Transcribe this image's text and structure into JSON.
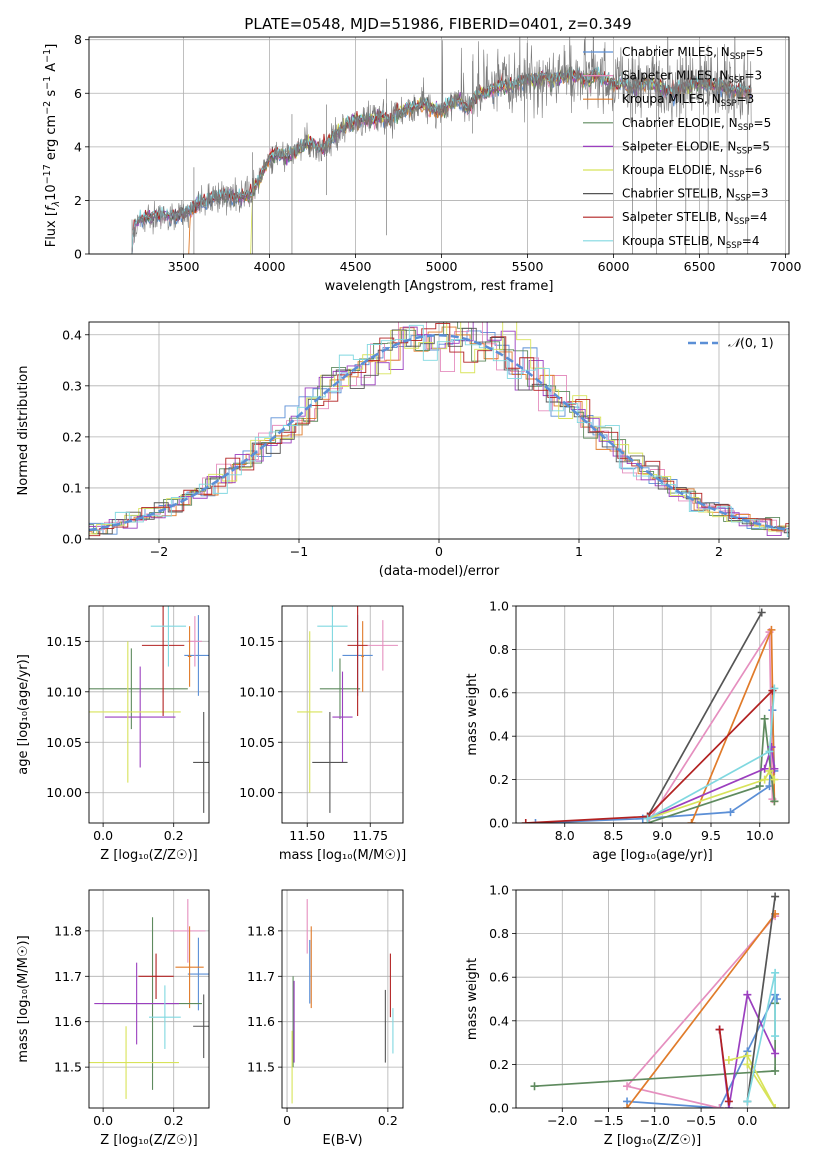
{
  "figure_title": "PLATE=0548, MJD=51986, FIBERID=0401, z=0.349",
  "colors": {
    "s1": "#5b8fd6",
    "s2": "#e58fbf",
    "s3": "#e07b2a",
    "s4": "#5e8a5e",
    "s5": "#9b3fbf",
    "s6": "#d8e35a",
    "s7": "#555555",
    "s8": "#b22222",
    "s9": "#80d8e0",
    "spec": "#7a7a7a"
  },
  "legend_spectrum": [
    {
      "text": "Chabrier MILES, N",
      "sub": "SSP",
      "tail": "=5",
      "color": "#5b8fd6"
    },
    {
      "text": "Salpeter MILES, N",
      "sub": "SSP",
      "tail": "=3",
      "color": "#e58fbf"
    },
    {
      "text": "Kroupa MILES, N",
      "sub": "SSP",
      "tail": "=3",
      "color": "#e07b2a"
    },
    {
      "text": "Chabrier ELODIE, N",
      "sub": "SSP",
      "tail": "=5",
      "color": "#5e8a5e"
    },
    {
      "text": "Salpeter ELODIE, N",
      "sub": "SSP",
      "tail": "=5",
      "color": "#9b3fbf"
    },
    {
      "text": "Kroupa ELODIE, N",
      "sub": "SSP",
      "tail": "=6",
      "color": "#d8e35a"
    },
    {
      "text": "Chabrier STELIB, N",
      "sub": "SSP",
      "tail": "=3",
      "color": "#555555"
    },
    {
      "text": "Salpeter STELIB, N",
      "sub": "SSP",
      "tail": "=4",
      "color": "#b22222"
    },
    {
      "text": "Kroupa STELIB, N",
      "sub": "SSP",
      "tail": "=4",
      "color": "#80d8e0"
    }
  ],
  "chart_data": [
    {
      "id": "spectrum",
      "type": "line",
      "title": "PLATE=0548, MJD=51986, FIBERID=0401, z=0.349",
      "xlabel": "wavelength [Angstrom, rest frame]",
      "ylabel_parts": [
        "Flux [",
        "f",
        "λ",
        "10",
        "−17",
        " erg cm",
        "−2",
        " s",
        "−1",
        " A",
        "−1",
        "]"
      ],
      "xlim": [
        2950,
        7020
      ],
      "ylim": [
        0,
        8.1
      ],
      "xticks": [
        3500,
        4000,
        4500,
        5000,
        5500,
        6000,
        6500,
        7000
      ],
      "yticks": [
        0,
        2,
        4,
        6,
        8
      ],
      "xticklabels": [
        "3500",
        "4000",
        "4500",
        "5000",
        "5500",
        "6000",
        "6500",
        "7000"
      ],
      "yticklabels": [
        "0",
        "2",
        "4",
        "6",
        "8"
      ],
      "continuum": {
        "x": [
          3200,
          3250,
          3300,
          3350,
          3400,
          3450,
          3500,
          3550,
          3600,
          3650,
          3700,
          3750,
          3800,
          3850,
          3900,
          3950,
          4000,
          4050,
          4100,
          4150,
          4200,
          4250,
          4300,
          4350,
          4400,
          4450,
          4500,
          4550,
          4600,
          4650,
          4700,
          4750,
          4800,
          4850,
          4900,
          4950,
          5000,
          5050,
          5100,
          5150,
          5200,
          5250,
          5300,
          5350,
          5400,
          5450,
          5500,
          5550,
          5600,
          5650,
          5700,
          5750,
          5800,
          5850,
          5900,
          5950,
          6000,
          6050,
          6100,
          6150,
          6200,
          6250,
          6300,
          6350,
          6400,
          6450,
          6500,
          6550,
          6600,
          6650,
          6700,
          6750,
          6800
        ],
        "y": [
          1.0,
          1.3,
          1.4,
          1.4,
          1.45,
          1.4,
          1.5,
          1.7,
          1.9,
          2.0,
          2.2,
          2.2,
          2.1,
          2.1,
          2.3,
          2.9,
          3.6,
          3.7,
          3.6,
          3.8,
          4.1,
          4.1,
          3.9,
          4.2,
          4.6,
          4.8,
          5.0,
          5.0,
          5.0,
          5.1,
          5.0,
          5.3,
          5.4,
          5.5,
          5.6,
          5.4,
          5.3,
          5.6,
          5.8,
          5.4,
          5.9,
          6.0,
          6.1,
          6.3,
          6.3,
          6.4,
          6.5,
          6.5,
          6.6,
          6.5,
          6.6,
          6.7,
          6.6,
          6.5,
          6.7,
          6.5,
          6.3,
          6.4,
          6.2,
          6.3,
          6.4,
          6.3,
          6.1,
          6.0,
          6.2,
          6.3,
          6.4,
          6.3,
          6.3,
          6.2,
          6.1,
          6.1,
          6.1
        ]
      },
      "dips": [
        {
          "x": 3560,
          "y": 0.0
        },
        {
          "x": 3900,
          "y": 0.0
        },
        {
          "x": 4130,
          "y": 0.0
        },
        {
          "x": 4330,
          "y": 2.2
        },
        {
          "x": 4680,
          "y": 0.7
        },
        {
          "x": 5180,
          "y": 4.5
        },
        {
          "x": 6110,
          "y": 0.0
        },
        {
          "x": 6250,
          "y": 0.0
        },
        {
          "x": 6420,
          "y": 0.0
        },
        {
          "x": 6550,
          "y": 0.0
        },
        {
          "x": 6660,
          "y": 0.0
        },
        {
          "x": 6780,
          "y": 0.0
        }
      ],
      "legend_position": "upper-right"
    },
    {
      "id": "residuals",
      "type": "histogram",
      "xlabel": "(data-model)/error",
      "ylabel": "Normed distribution",
      "xlim": [
        -2.5,
        2.5
      ],
      "ylim": [
        0,
        0.425
      ],
      "xticks": [
        -2,
        -1,
        0,
        1,
        2
      ],
      "xticklabels": [
        "−2",
        "−1",
        "0",
        "1",
        "2"
      ],
      "yticks": [
        0,
        0.1,
        0.2,
        0.3,
        0.4
      ],
      "yticklabels": [
        "0.0",
        "0.1",
        "0.2",
        "0.3",
        "0.4"
      ],
      "bin_width": 0.1,
      "legend_label_prefix": "𝒩",
      "legend_label": "(0, 1)",
      "legend_position": "upper-right"
    },
    {
      "id": "age-vs-Z",
      "type": "errorbar",
      "xlabel": "Z [log₁₀(Z/Z☉)]",
      "ylabel": "age  [log₁₀(age/yr)]",
      "xlim": [
        -0.04,
        0.3
      ],
      "ylim": [
        9.97,
        10.185
      ],
      "xticks": [
        0,
        0.2
      ],
      "xticklabels": [
        "0.0",
        "0.2"
      ],
      "yticks": [
        10.0,
        10.05,
        10.1,
        10.15
      ],
      "yticklabels": [
        "10.00",
        "10.05",
        "10.10",
        "10.15"
      ],
      "points": [
        {
          "c": "s1",
          "x": 0.27,
          "xerr": 0.04,
          "y": 10.136,
          "yerr": 0.04
        },
        {
          "c": "s2",
          "x": 0.26,
          "xerr": 0.02,
          "y": 10.15,
          "yerr": 0.025
        },
        {
          "c": "s3",
          "x": 0.245,
          "xerr": 0.005,
          "y": 10.135,
          "yerr": 0.03
        },
        {
          "c": "s4",
          "x": 0.08,
          "xerr": 0.16,
          "y": 10.103,
          "yerr": 0.04
        },
        {
          "c": "s5",
          "x": 0.105,
          "xerr": 0.1,
          "y": 10.075,
          "yerr": 0.05
        },
        {
          "c": "s6",
          "x": 0.07,
          "xerr": 0.15,
          "y": 10.08,
          "yerr": 0.07
        },
        {
          "c": "s7",
          "x": 0.285,
          "xerr": 0.03,
          "y": 10.03,
          "yerr": 0.05
        },
        {
          "c": "s8",
          "x": 0.17,
          "xerr": 0.06,
          "y": 10.146,
          "yerr": 0.07
        },
        {
          "c": "s9",
          "x": 0.185,
          "xerr": 0.05,
          "y": 10.165,
          "yerr": 0.04
        }
      ]
    },
    {
      "id": "age-vs-mass",
      "type": "errorbar",
      "xlabel": "mass [log₁₀(M/M☉)]",
      "ylabel": "",
      "xlim": [
        11.4,
        11.88
      ],
      "ylim": [
        9.97,
        10.185
      ],
      "xticks": [
        11.5,
        11.75
      ],
      "xticklabels": [
        "11.50",
        "11.75"
      ],
      "yticks": [
        10.0,
        10.05,
        10.1,
        10.15
      ],
      "yticklabels": [
        "10.00",
        "10.05",
        "10.10",
        "10.15"
      ],
      "points": [
        {
          "c": "s1",
          "x": 11.7,
          "xerr": 0.06,
          "y": 10.136,
          "yerr": 0.04
        },
        {
          "c": "s2",
          "x": 11.8,
          "xerr": 0.06,
          "y": 10.146,
          "yerr": 0.025
        },
        {
          "c": "s3",
          "x": 11.72,
          "xerr": 0.005,
          "y": 10.135,
          "yerr": 0.035
        },
        {
          "c": "s4",
          "x": 11.63,
          "xerr": 0.08,
          "y": 10.103,
          "yerr": 0.03
        },
        {
          "c": "s5",
          "x": 11.64,
          "xerr": 0.04,
          "y": 10.075,
          "yerr": 0.045
        },
        {
          "c": "s6",
          "x": 11.51,
          "xerr": 0.05,
          "y": 10.08,
          "yerr": 0.08
        },
        {
          "c": "s7",
          "x": 11.59,
          "xerr": 0.07,
          "y": 10.03,
          "yerr": 0.05
        },
        {
          "c": "s8",
          "x": 11.7,
          "xerr": 0.04,
          "y": 10.146,
          "yerr": 0.07
        },
        {
          "c": "s9",
          "x": 11.6,
          "xerr": 0.06,
          "y": 10.165,
          "yerr": 0.045
        }
      ]
    },
    {
      "id": "weight-vs-age",
      "type": "line",
      "xlabel": "age  [log₁₀(age/yr)]",
      "ylabel": "mass weight",
      "xlim": [
        7.5,
        10.3
      ],
      "ylim": [
        0,
        1.0
      ],
      "xticks": [
        8.0,
        8.5,
        9.0,
        9.5,
        10.0
      ],
      "xticklabels": [
        "8.0",
        "8.5",
        "9.0",
        "9.5",
        "10.0"
      ],
      "yticks": [
        0,
        0.2,
        0.4,
        0.6,
        0.8,
        1.0
      ],
      "yticklabels": [
        "0.0",
        "0.2",
        "0.4",
        "0.6",
        "0.8",
        "1.0"
      ],
      "series": [
        {
          "c": "s1",
          "x": [
            7.7,
            8.8,
            9.7,
            10.1,
            10.13,
            10.15
          ],
          "y": [
            0.0,
            0.02,
            0.05,
            0.17,
            0.52,
            0.24
          ]
        },
        {
          "c": "s2",
          "x": [
            8.85,
            10.1,
            10.13
          ],
          "y": [
            0.0,
            0.88,
            0.11
          ]
        },
        {
          "c": "s3",
          "x": [
            9.3,
            10.12,
            10.15
          ],
          "y": [
            0.0,
            0.89,
            0.1
          ]
        },
        {
          "c": "s4",
          "x": [
            8.85,
            10.0,
            10.05,
            10.15
          ],
          "y": [
            0.0,
            0.17,
            0.48,
            0.1
          ]
        },
        {
          "c": "s5",
          "x": [
            8.85,
            10.05,
            10.12,
            10.15
          ],
          "y": [
            0.02,
            0.25,
            0.35,
            0.25
          ]
        },
        {
          "c": "s6",
          "x": [
            8.85,
            10.05,
            10.1,
            10.15
          ],
          "y": [
            0.02,
            0.2,
            0.24,
            0.2
          ]
        },
        {
          "c": "s7",
          "x": [
            8.85,
            10.02
          ],
          "y": [
            0.03,
            0.97
          ]
        },
        {
          "c": "s8",
          "x": [
            7.6,
            8.85,
            10.13
          ],
          "y": [
            0.0,
            0.03,
            0.61
          ]
        },
        {
          "c": "s9",
          "x": [
            8.85,
            10.1,
            10.15
          ],
          "y": [
            0.02,
            0.33,
            0.62
          ]
        }
      ]
    },
    {
      "id": "mass-vs-Z",
      "type": "errorbar",
      "xlabel": "Z [log₁₀(Z/Z☉)]",
      "ylabel": "mass [log₁₀(M/M☉)]",
      "xlim": [
        -0.04,
        0.3
      ],
      "ylim": [
        11.41,
        11.89
      ],
      "xticks": [
        0,
        0.2
      ],
      "xticklabels": [
        "0.0",
        "0.2"
      ],
      "yticks": [
        11.5,
        11.6,
        11.7,
        11.8
      ],
      "yticklabels": [
        "11.5",
        "11.6",
        "11.7",
        "11.8"
      ],
      "points": [
        {
          "c": "s1",
          "x": 0.27,
          "xerr": 0.03,
          "y": 11.705,
          "yerr": 0.08
        },
        {
          "c": "s2",
          "x": 0.24,
          "xerr": 0.05,
          "y": 11.8,
          "yerr": 0.07
        },
        {
          "c": "s3",
          "x": 0.245,
          "xerr": 0.04,
          "y": 11.72,
          "yerr": 0.09
        },
        {
          "c": "s4",
          "x": 0.14,
          "xerr": 0.14,
          "y": 11.64,
          "yerr": 0.19
        },
        {
          "c": "s5",
          "x": 0.095,
          "xerr": 0.12,
          "y": 11.64,
          "yerr": 0.09
        },
        {
          "c": "s6",
          "x": 0.065,
          "xerr": 0.15,
          "y": 11.51,
          "yerr": 0.08
        },
        {
          "c": "s7",
          "x": 0.285,
          "xerr": 0.03,
          "y": 11.59,
          "yerr": 0.07
        },
        {
          "c": "s8",
          "x": 0.15,
          "xerr": 0.05,
          "y": 11.7,
          "yerr": 0.05
        },
        {
          "c": "s9",
          "x": 0.175,
          "xerr": 0.045,
          "y": 11.61,
          "yerr": 0.07
        }
      ]
    },
    {
      "id": "mass-vs-EBV",
      "type": "errorbar",
      "xlabel": "E(B-V)",
      "ylabel": "",
      "xlim": [
        -0.01,
        0.23
      ],
      "ylim": [
        11.41,
        11.89
      ],
      "xticks": [
        0,
        0.2
      ],
      "xticklabels": [
        "0",
        "0.2"
      ],
      "yticks": [
        11.5,
        11.6,
        11.7,
        11.8
      ],
      "yticklabels": [
        "11.5",
        "11.6",
        "11.7",
        "11.8"
      ],
      "points": [
        {
          "c": "s1",
          "x": 0.045,
          "xerr": 0,
          "y": 11.71,
          "yerr": 0.07
        },
        {
          "c": "s2",
          "x": 0.04,
          "xerr": 0,
          "y": 11.81,
          "yerr": 0.06
        },
        {
          "c": "s3",
          "x": 0.048,
          "xerr": 0,
          "y": 11.72,
          "yerr": 0.09
        },
        {
          "c": "s4",
          "x": 0.012,
          "xerr": 0,
          "y": 11.6,
          "yerr": 0.1
        },
        {
          "c": "s5",
          "x": 0.014,
          "xerr": 0,
          "y": 11.6,
          "yerr": 0.09
        },
        {
          "c": "s6",
          "x": 0.01,
          "xerr": 0,
          "y": 11.5,
          "yerr": 0.08
        },
        {
          "c": "s7",
          "x": 0.195,
          "xerr": 0,
          "y": 11.59,
          "yerr": 0.08
        },
        {
          "c": "s8",
          "x": 0.205,
          "xerr": 0,
          "y": 11.68,
          "yerr": 0.07
        },
        {
          "c": "s9",
          "x": 0.21,
          "xerr": 0,
          "y": 11.58,
          "yerr": 0.05
        }
      ]
    },
    {
      "id": "weight-vs-Z",
      "type": "line",
      "xlabel": "Z [log₁₀(Z/Z☉)]",
      "ylabel": "mass weight",
      "xlim": [
        -2.5,
        0.45
      ],
      "ylim": [
        0,
        1.0
      ],
      "xticks": [
        -2.0,
        -1.5,
        -1.0,
        -0.5,
        0.0
      ],
      "xticklabels": [
        "−2.0",
        "−1.5",
        "−1.0",
        "−0.5",
        "0.0"
      ],
      "yticks": [
        0,
        0.2,
        0.4,
        0.6,
        0.8,
        1.0
      ],
      "yticklabels": [
        "0.0",
        "0.2",
        "0.4",
        "0.6",
        "0.8",
        "1.0"
      ],
      "series": [
        {
          "c": "s1",
          "x": [
            -1.3,
            -0.3,
            0.0,
            0.3,
            0.32
          ],
          "y": [
            0.03,
            0.0,
            0.26,
            0.52,
            0.5
          ]
        },
        {
          "c": "s2",
          "x": [
            -0.3,
            -1.3,
            0.3
          ],
          "y": [
            0.0,
            0.1,
            0.88
          ]
        },
        {
          "c": "s3",
          "x": [
            -1.3,
            0.3
          ],
          "y": [
            0.0,
            0.89
          ]
        },
        {
          "c": "s4",
          "x": [
            -2.3,
            0.3,
            0.3
          ],
          "y": [
            0.1,
            0.17,
            0.48
          ]
        },
        {
          "c": "s5",
          "x": [
            -0.3,
            -0.2,
            0.0,
            0.3
          ],
          "y": [
            0.36,
            0.0,
            0.52,
            0.25
          ]
        },
        {
          "c": "s6",
          "x": [
            -0.2,
            0.0,
            0.3,
            0.0
          ],
          "y": [
            0.22,
            0.24,
            0.0,
            0.2
          ]
        },
        {
          "c": "s7",
          "x": [
            0.0,
            0.3
          ],
          "y": [
            0.03,
            0.97
          ]
        },
        {
          "c": "s8",
          "x": [
            -0.3,
            -0.2
          ],
          "y": [
            0.36,
            0.03
          ]
        },
        {
          "c": "s9",
          "x": [
            0.0,
            0.3,
            0.3
          ],
          "y": [
            0.03,
            0.62,
            0.33
          ]
        }
      ]
    }
  ]
}
